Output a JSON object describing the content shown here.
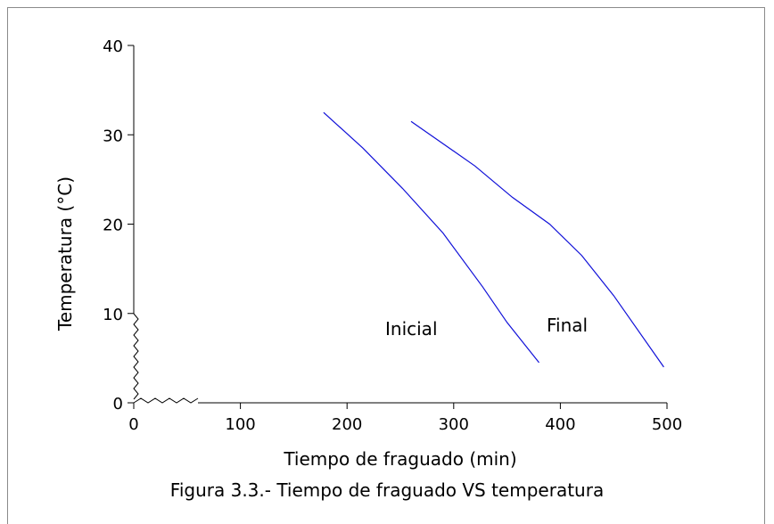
{
  "caption": "Figura 3.3.- Tiempo de fraguado VS temperatura",
  "chart_data": {
    "type": "line",
    "title": "",
    "xlabel": "Tiempo de fraguado (min)",
    "ylabel": "Temperatura (°C)",
    "x_axis_break": true,
    "y_axis_break": true,
    "xlim": [
      0,
      500
    ],
    "ylim": [
      0,
      40
    ],
    "x_ticks": [
      "0",
      "100",
      "200",
      "300",
      "400",
      "500"
    ],
    "y_ticks": [
      "0",
      "10",
      "20",
      "30",
      "40"
    ],
    "grid": false,
    "line_color": "#1010d8",
    "series": [
      {
        "name": "Inicial",
        "x": [
          178,
          215,
          252,
          290,
          327,
          350,
          380
        ],
        "y": [
          32.5,
          28.5,
          24,
          19,
          13,
          9,
          4.5
        ]
      },
      {
        "name": "Final",
        "x": [
          260,
          320,
          355,
          390,
          420,
          450,
          497
        ],
        "y": [
          31.5,
          26.5,
          23,
          20,
          16.5,
          12,
          4
        ]
      }
    ]
  }
}
